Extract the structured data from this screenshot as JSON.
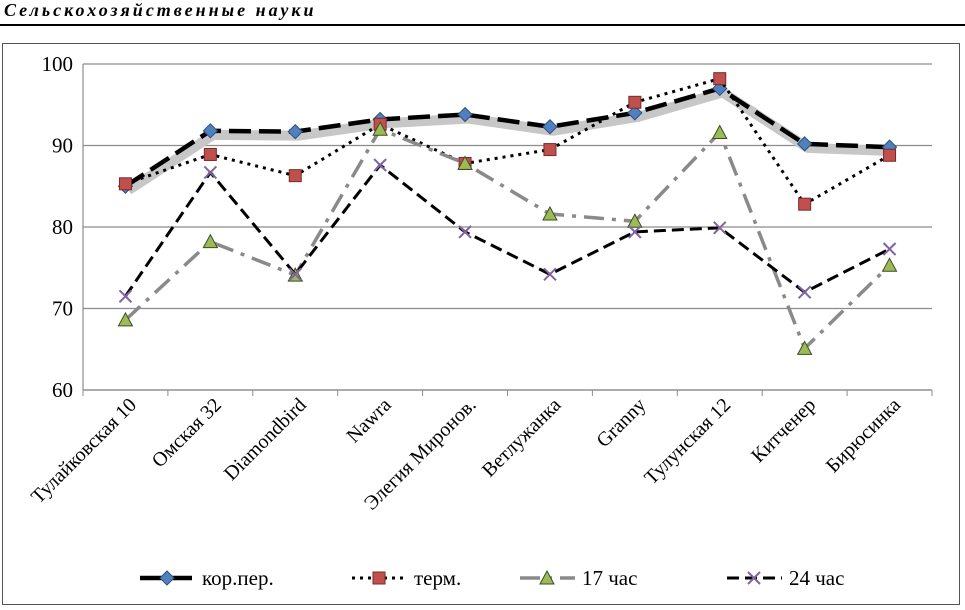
{
  "header": {
    "title": "Сельскохозяйственные науки"
  },
  "chart_data": {
    "type": "line",
    "title": "",
    "xlabel": "",
    "ylabel": "",
    "ylim": [
      60,
      100
    ],
    "yticks": [
      "60",
      "70",
      "80",
      "90",
      "100"
    ],
    "categories": [
      "Тулайковская 10",
      "Омская 32",
      "Diamondbird",
      "Nawra",
      "Элегия Миронов.",
      "Ветлужанка",
      "Granny",
      "Тулунская 12",
      "Китченер",
      "Бирюсинка"
    ],
    "series": [
      {
        "name": "кор.пер.",
        "marker": "diamond",
        "color": "#4F81BD",
        "line": "long-dash",
        "values": [
          85,
          91.8,
          91.7,
          93.2,
          93.8,
          92.3,
          94,
          97,
          90.2,
          89.8
        ]
      },
      {
        "name": "терм.",
        "marker": "square",
        "color": "#C0504D",
        "line": "dotted",
        "values": [
          85.3,
          88.9,
          86.3,
          92.6,
          87.8,
          89.5,
          95.3,
          98.2,
          82.8,
          88.8
        ]
      },
      {
        "name": "17 час",
        "marker": "triangle",
        "color": "#9BBB59",
        "line": "dash-dot",
        "values": [
          68.6,
          78.2,
          74.1,
          92,
          87.8,
          81.6,
          80.7,
          91.6,
          65.1,
          75.3
        ]
      },
      {
        "name": "24 час",
        "marker": "cross",
        "color": "#8064A2",
        "line": "dashed",
        "values": [
          71.5,
          86.7,
          74.2,
          87.6,
          79.4,
          74.2,
          79.4,
          79.9,
          72,
          77.3
        ]
      }
    ],
    "legend": "bottom",
    "grid": true
  }
}
